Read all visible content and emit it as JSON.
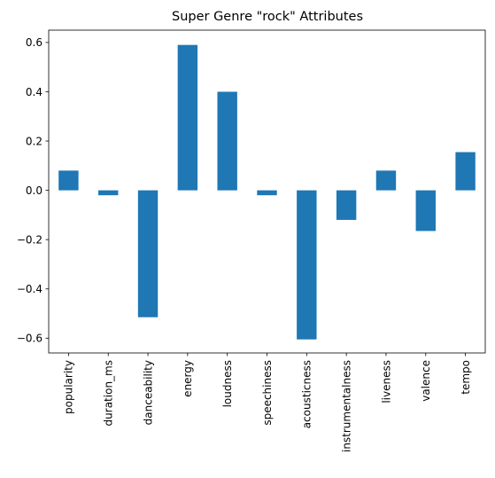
{
  "chart_data": {
    "type": "bar",
    "title": "Super Genre \"rock\" Attributes",
    "xlabel": "",
    "ylabel": "",
    "categories": [
      "popularity",
      "duration_ms",
      "danceability",
      "energy",
      "loudness",
      "speechiness",
      "acousticness",
      "instrumentalness",
      "liveness",
      "valence",
      "tempo"
    ],
    "values": [
      0.08,
      -0.02,
      -0.515,
      0.59,
      0.4,
      -0.02,
      -0.605,
      -0.12,
      0.08,
      -0.165,
      0.155
    ],
    "ylim": [
      -0.66,
      0.65
    ],
    "yticks": [
      -0.6,
      -0.4,
      -0.2,
      0.0,
      0.2,
      0.4,
      0.6
    ],
    "ytick_labels": [
      "−0.6",
      "−0.4",
      "−0.2",
      "0.0",
      "0.2",
      "0.4",
      "0.6"
    ],
    "bar_color": "#1f77b4",
    "grid": false,
    "legend": "none"
  }
}
